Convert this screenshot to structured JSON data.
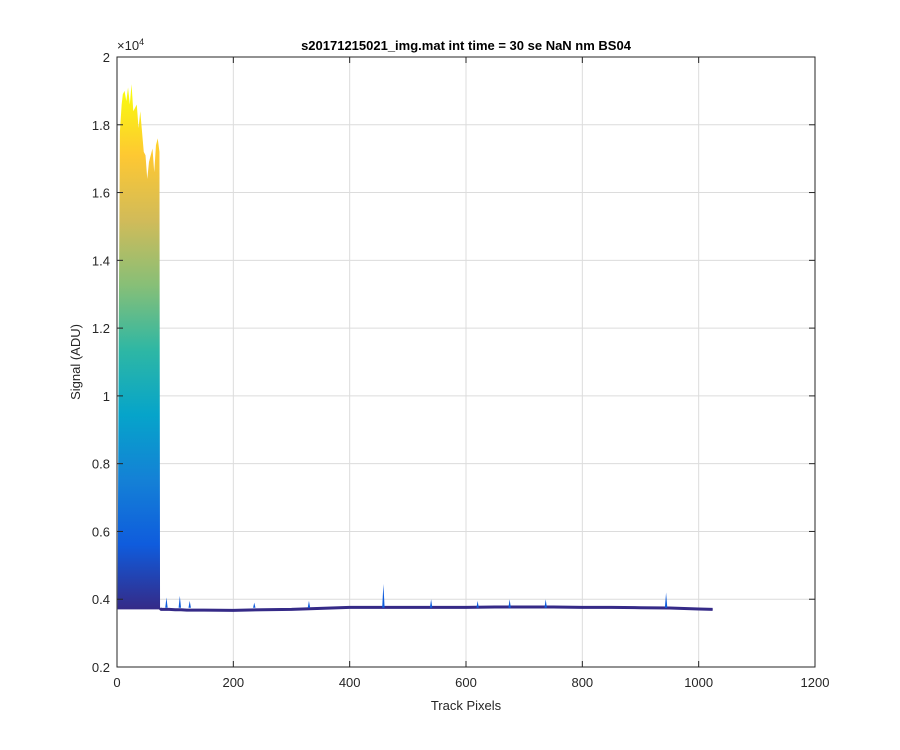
{
  "chart_data": {
    "type": "area",
    "title": "s20171215021_img.mat int time = 30 se  NaN nm BS04",
    "xlabel": "Track Pixels",
    "ylabel": "Signal (ADU)",
    "y_multiplier_label": "×10",
    "y_multiplier_exponent": "4",
    "xlim": [
      0,
      1200
    ],
    "ylim": [
      0.2,
      2.0
    ],
    "x_ticks": [
      0,
      200,
      400,
      600,
      800,
      1000,
      1200
    ],
    "x_tick_labels": [
      "0",
      "200",
      "400",
      "600",
      "800",
      "1000",
      "1200"
    ],
    "y_ticks": [
      0.2,
      0.4,
      0.6,
      0.8,
      1.0,
      1.2,
      1.4,
      1.6,
      1.8,
      2.0
    ],
    "y_tick_labels": [
      "0.2",
      "0.4",
      "0.6",
      "0.8",
      "1",
      "1.2",
      "1.4",
      "1.6",
      "1.8",
      "2"
    ],
    "grid": true,
    "colormap": [
      "#352a87",
      "#0f5cdd",
      "#1481d6",
      "#06a4ca",
      "#2eb7a4",
      "#87bf77",
      "#d1bb59",
      "#fec832",
      "#f9fb0e"
    ],
    "series": [
      {
        "x": [
          1,
          3,
          5,
          8,
          10,
          13,
          16,
          19,
          22,
          25,
          28,
          31,
          34,
          37,
          40,
          43,
          46,
          49,
          52,
          55,
          58,
          61,
          64,
          67,
          70,
          73,
          74,
          76,
          80,
          90,
          100,
          110,
          120,
          150,
          200,
          250,
          300,
          350,
          400,
          450,
          500,
          550,
          600,
          650,
          700,
          750,
          800,
          850,
          900,
          950,
          1000,
          1024
        ],
        "y": [
          0.375,
          1.2,
          1.78,
          1.86,
          1.89,
          1.9,
          1.87,
          1.91,
          1.86,
          1.92,
          1.84,
          1.85,
          1.86,
          1.79,
          1.84,
          1.78,
          1.72,
          1.71,
          1.64,
          1.69,
          1.71,
          1.73,
          1.66,
          1.74,
          1.76,
          1.72,
          0.375,
          0.372,
          0.372,
          0.372,
          0.371,
          0.371,
          0.37,
          0.37,
          0.369,
          0.371,
          0.372,
          0.375,
          0.378,
          0.378,
          0.378,
          0.378,
          0.378,
          0.379,
          0.379,
          0.379,
          0.378,
          0.378,
          0.377,
          0.376,
          0.373,
          0.372
        ],
        "y_min": [
          0.37,
          0.37,
          0.37,
          0.37,
          0.37,
          0.37,
          0.37,
          0.37,
          0.37,
          0.37,
          0.37,
          0.37,
          0.37,
          0.37,
          0.37,
          0.37,
          0.37,
          0.37,
          0.37,
          0.37,
          0.37,
          0.37,
          0.37,
          0.37,
          0.37,
          0.37,
          0.37,
          0.368,
          0.368,
          0.368,
          0.367,
          0.367,
          0.366,
          0.366,
          0.365,
          0.367,
          0.368,
          0.371,
          0.374,
          0.374,
          0.374,
          0.374,
          0.374,
          0.375,
          0.375,
          0.375,
          0.374,
          0.374,
          0.373,
          0.372,
          0.369,
          0.368
        ]
      }
    ],
    "spikes": [
      {
        "x": 85,
        "y": 0.405
      },
      {
        "x": 108,
        "y": 0.41
      },
      {
        "x": 125,
        "y": 0.395
      },
      {
        "x": 236,
        "y": 0.39
      },
      {
        "x": 330,
        "y": 0.395
      },
      {
        "x": 458,
        "y": 0.445
      },
      {
        "x": 540,
        "y": 0.4
      },
      {
        "x": 620,
        "y": 0.395
      },
      {
        "x": 675,
        "y": 0.4
      },
      {
        "x": 737,
        "y": 0.4
      },
      {
        "x": 944,
        "y": 0.42
      }
    ]
  }
}
